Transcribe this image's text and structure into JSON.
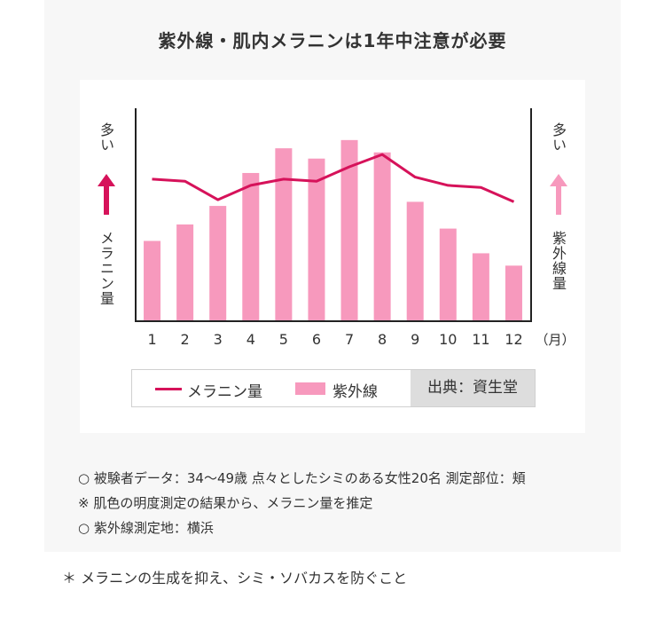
{
  "title": "紫外線・肌内メラニンは1年中注意が必要",
  "chart_data": {
    "type": "bar+line",
    "categories": [
      "1",
      "2",
      "3",
      "4",
      "5",
      "6",
      "7",
      "8",
      "9",
      "10",
      "11",
      "12"
    ],
    "x_unit": "（月）",
    "series": [
      {
        "name": "紫外線",
        "type": "bar",
        "color": "#f799bd",
        "values": [
          3.9,
          4.7,
          5.6,
          7.2,
          8.4,
          7.9,
          8.8,
          8.2,
          5.8,
          4.5,
          3.3,
          2.7
        ]
      },
      {
        "name": "メラニン量",
        "type": "line",
        "color": "#d6125a",
        "values": [
          6.9,
          6.8,
          5.9,
          6.6,
          6.9,
          6.8,
          7.5,
          8.1,
          7.0,
          6.6,
          6.5,
          5.8
        ]
      }
    ],
    "ylim": [
      0,
      10
    ],
    "left_axis": {
      "top_label": "多い",
      "bottom_label": "メラニン量",
      "arrow_color": "#d6125a"
    },
    "right_axis": {
      "top_label": "多い",
      "bottom_label": "紫外線量",
      "arrow_color": "#f799bd"
    },
    "grid": false,
    "legend_position": "bottom",
    "source": "出典：資生堂"
  },
  "notes": [
    "○ 被験者データ：34～49歳 点々としたシミのある女性20名 測定部位：頬",
    "※ 肌色の明度測定の結果から、メラニン量を推定",
    "○ 紫外線測定地：横浜"
  ],
  "footer_note": "＊ メラニンの生成を抑え、シミ・ソバカスを防ぐこと"
}
